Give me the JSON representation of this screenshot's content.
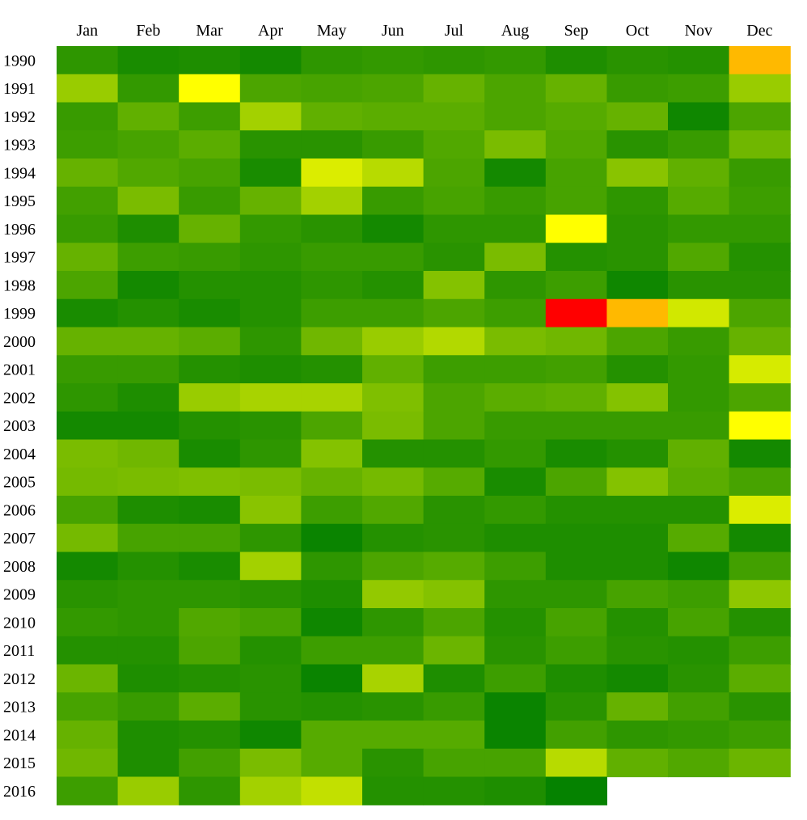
{
  "chart_data": {
    "type": "heatmap",
    "title": "",
    "xlabel": "",
    "ylabel": "",
    "x_categories": [
      "Jan",
      "Feb",
      "Mar",
      "Apr",
      "May",
      "Jun",
      "Jul",
      "Aug",
      "Sep",
      "Oct",
      "Nov",
      "Dec"
    ],
    "y_categories": [
      "1990",
      "1991",
      "1992",
      "1993",
      "1994",
      "1995",
      "1996",
      "1997",
      "1998",
      "1999",
      "2000",
      "2001",
      "2002",
      "2003",
      "2004",
      "2005",
      "2006",
      "2007",
      "2008",
      "2009",
      "2010",
      "2011",
      "2012",
      "2013",
      "2014",
      "2015",
      "2016"
    ],
    "value_range": [
      0,
      1
    ],
    "colorscale": [
      "#007f00",
      "#7fbf00",
      "#ffff00",
      "#ffb000",
      "#ff0000"
    ],
    "legend": "none",
    "grid": false,
    "values": [
      [
        0.09,
        0.05,
        0.06,
        0.04,
        0.09,
        0.1,
        0.09,
        0.1,
        0.06,
        0.08,
        0.07,
        0.72
      ],
      [
        0.3,
        0.1,
        0.5,
        0.15,
        0.14,
        0.15,
        0.2,
        0.15,
        0.2,
        0.11,
        0.12,
        0.3
      ],
      [
        0.11,
        0.19,
        0.12,
        0.32,
        0.19,
        0.18,
        0.18,
        0.15,
        0.17,
        0.2,
        0.03,
        0.15
      ],
      [
        0.12,
        0.14,
        0.18,
        0.08,
        0.08,
        0.11,
        0.16,
        0.24,
        0.16,
        0.08,
        0.11,
        0.22
      ],
      [
        0.2,
        0.16,
        0.14,
        0.05,
        0.43,
        0.36,
        0.15,
        0.04,
        0.14,
        0.27,
        0.19,
        0.11
      ],
      [
        0.13,
        0.24,
        0.11,
        0.2,
        0.32,
        0.11,
        0.14,
        0.11,
        0.14,
        0.09,
        0.17,
        0.12
      ],
      [
        0.11,
        0.06,
        0.2,
        0.1,
        0.08,
        0.04,
        0.09,
        0.09,
        0.5,
        0.08,
        0.1,
        0.1
      ],
      [
        0.2,
        0.12,
        0.11,
        0.09,
        0.11,
        0.11,
        0.08,
        0.24,
        0.07,
        0.08,
        0.16,
        0.07
      ],
      [
        0.15,
        0.04,
        0.07,
        0.07,
        0.09,
        0.07,
        0.26,
        0.09,
        0.12,
        0.03,
        0.08,
        0.08
      ],
      [
        0.05,
        0.07,
        0.05,
        0.07,
        0.12,
        0.12,
        0.15,
        0.12,
        1.0,
        0.72,
        0.41,
        0.15
      ],
      [
        0.2,
        0.2,
        0.18,
        0.09,
        0.22,
        0.3,
        0.35,
        0.24,
        0.22,
        0.15,
        0.11,
        0.2
      ],
      [
        0.11,
        0.11,
        0.07,
        0.06,
        0.07,
        0.19,
        0.12,
        0.12,
        0.13,
        0.07,
        0.1,
        0.42
      ],
      [
        0.09,
        0.06,
        0.3,
        0.33,
        0.33,
        0.25,
        0.15,
        0.18,
        0.19,
        0.26,
        0.1,
        0.15
      ],
      [
        0.04,
        0.04,
        0.07,
        0.08,
        0.15,
        0.24,
        0.15,
        0.11,
        0.11,
        0.11,
        0.11,
        0.5
      ],
      [
        0.24,
        0.22,
        0.05,
        0.09,
        0.26,
        0.07,
        0.07,
        0.1,
        0.05,
        0.07,
        0.19,
        0.04
      ],
      [
        0.23,
        0.24,
        0.25,
        0.24,
        0.2,
        0.23,
        0.17,
        0.05,
        0.15,
        0.26,
        0.18,
        0.14
      ],
      [
        0.14,
        0.06,
        0.05,
        0.27,
        0.12,
        0.16,
        0.08,
        0.1,
        0.07,
        0.07,
        0.07,
        0.43
      ],
      [
        0.23,
        0.14,
        0.14,
        0.09,
        0.02,
        0.07,
        0.08,
        0.06,
        0.06,
        0.06,
        0.17,
        0.04
      ],
      [
        0.04,
        0.07,
        0.05,
        0.32,
        0.09,
        0.15,
        0.17,
        0.12,
        0.06,
        0.06,
        0.03,
        0.13
      ],
      [
        0.08,
        0.09,
        0.09,
        0.08,
        0.06,
        0.29,
        0.26,
        0.09,
        0.09,
        0.14,
        0.12,
        0.28
      ],
      [
        0.1,
        0.09,
        0.16,
        0.14,
        0.03,
        0.09,
        0.15,
        0.07,
        0.14,
        0.07,
        0.14,
        0.07
      ],
      [
        0.07,
        0.07,
        0.15,
        0.07,
        0.12,
        0.12,
        0.21,
        0.08,
        0.12,
        0.08,
        0.07,
        0.12
      ],
      [
        0.21,
        0.06,
        0.07,
        0.08,
        0.02,
        0.33,
        0.06,
        0.12,
        0.06,
        0.04,
        0.08,
        0.18
      ],
      [
        0.14,
        0.11,
        0.18,
        0.08,
        0.07,
        0.08,
        0.11,
        0.02,
        0.08,
        0.2,
        0.13,
        0.08
      ],
      [
        0.2,
        0.06,
        0.07,
        0.03,
        0.17,
        0.17,
        0.17,
        0.02,
        0.13,
        0.09,
        0.1,
        0.12
      ],
      [
        0.22,
        0.06,
        0.13,
        0.24,
        0.17,
        0.08,
        0.14,
        0.14,
        0.36,
        0.19,
        0.16,
        0.21
      ],
      [
        0.12,
        0.3,
        0.09,
        0.32,
        0.38,
        0.07,
        0.07,
        0.06,
        0.01,
        null,
        null,
        null
      ]
    ]
  }
}
